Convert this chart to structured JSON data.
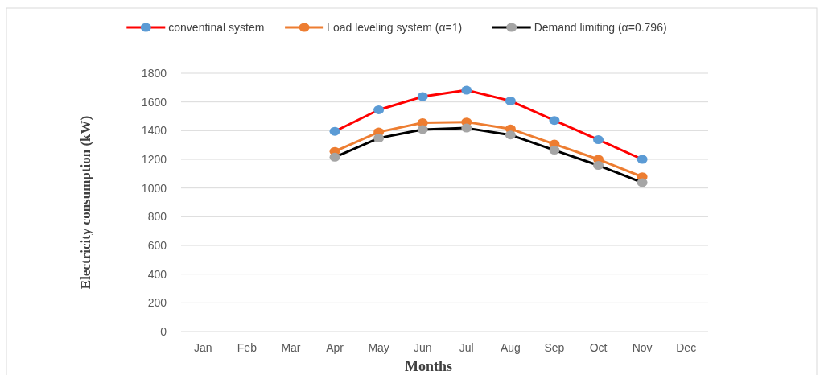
{
  "chart_data": {
    "type": "line",
    "xlabel": "Months",
    "ylabel": "Electricity consumption (kW)",
    "categories": [
      "Jan",
      "Feb",
      "Mar",
      "Apr",
      "May",
      "Jun",
      "Jul",
      "Aug",
      "Sep",
      "Oct",
      "Nov",
      "Dec"
    ],
    "series": [
      {
        "name": "conventinal system",
        "color": "#ff0000",
        "colors": [
          null,
          null,
          null,
          "#5b9bd5",
          "#5b9bd5",
          "#5b9bd5",
          "#5b9bd5",
          "#5b9bd5",
          "#5b9bd5",
          "#5b9bd5",
          "#5b9bd5",
          null
        ],
        "values": [
          null,
          null,
          null,
          1395,
          1545,
          1637,
          1682,
          1607,
          1471,
          1337,
          1200,
          null
        ]
      },
      {
        "name": "Load leveling system (α=1)",
        "color": "#ed7d31",
        "colors": [
          null,
          null,
          null,
          "#ed7d31",
          "#ed7d31",
          "#ed7d31",
          "#ed7d31",
          "#ed7d31",
          "#ed7d31",
          "#ed7d31",
          "#ed7d31",
          null
        ],
        "values": [
          null,
          null,
          null,
          1255,
          1390,
          1455,
          1460,
          1412,
          1306,
          1200,
          1078,
          null
        ]
      },
      {
        "name": "Demand limiting (α=0.796)",
        "color": "#000000",
        "colors": [
          null,
          null,
          null,
          "#a5a5a5",
          "#a5a5a5",
          "#a5a5a5",
          "#a5a5a5",
          "#a5a5a5",
          "#a5a5a5",
          "#a5a5a5",
          "#a5a5a5",
          null
        ],
        "values": [
          null,
          null,
          null,
          1215,
          1348,
          1408,
          1418,
          1370,
          1264,
          1158,
          1038,
          null
        ]
      }
    ],
    "ylim": [
      0,
      1800
    ],
    "yticks": [
      0,
      200,
      400,
      600,
      800,
      1000,
      1200,
      1400,
      1600,
      1800
    ],
    "grid": "y",
    "legend": "top",
    "marker": "circle",
    "line_style": "solid"
  }
}
